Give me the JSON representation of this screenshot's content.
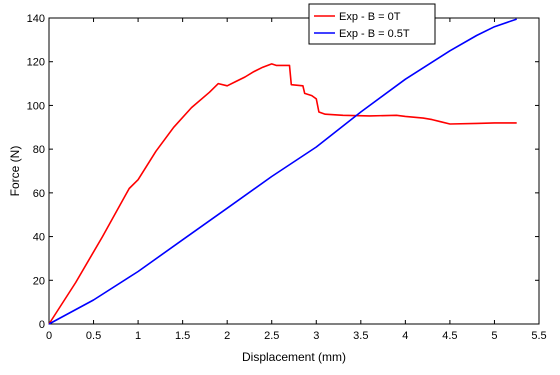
{
  "chart_data": {
    "type": "line",
    "xlabel": "Displacement (mm)",
    "ylabel": "Force (N)",
    "xlim": [
      0,
      5.5
    ],
    "ylim": [
      0,
      140
    ],
    "xticks": [
      0,
      0.5,
      1,
      1.5,
      2,
      2.5,
      3,
      3.5,
      4,
      4.5,
      5,
      5.5
    ],
    "yticks": [
      0,
      20,
      40,
      60,
      80,
      100,
      120,
      140
    ],
    "grid": false,
    "legend_position": "top-right",
    "series": [
      {
        "name": "Exp - B = 0T",
        "color": "#ff0000",
        "points": [
          [
            0,
            0
          ],
          [
            0.3,
            19
          ],
          [
            0.6,
            40
          ],
          [
            0.9,
            62
          ],
          [
            1.0,
            66
          ],
          [
            1.2,
            79
          ],
          [
            1.4,
            90
          ],
          [
            1.6,
            99
          ],
          [
            1.8,
            106
          ],
          [
            1.9,
            110
          ],
          [
            2.0,
            109
          ],
          [
            2.1,
            111
          ],
          [
            2.2,
            113
          ],
          [
            2.3,
            115.5
          ],
          [
            2.4,
            117.5
          ],
          [
            2.5,
            119
          ],
          [
            2.55,
            118.3
          ],
          [
            2.7,
            118.3
          ],
          [
            2.72,
            109.5
          ],
          [
            2.85,
            109
          ],
          [
            2.87,
            105.5
          ],
          [
            2.95,
            104.5
          ],
          [
            3.0,
            103
          ],
          [
            3.03,
            97
          ],
          [
            3.1,
            96
          ],
          [
            3.3,
            95.5
          ],
          [
            3.6,
            95.2
          ],
          [
            3.9,
            95.5
          ],
          [
            4.0,
            95
          ],
          [
            4.2,
            94.2
          ],
          [
            4.3,
            93.5
          ],
          [
            4.4,
            92.5
          ],
          [
            4.5,
            91.5
          ],
          [
            4.8,
            91.8
          ],
          [
            5.0,
            92
          ],
          [
            5.25,
            92
          ]
        ]
      },
      {
        "name": "Exp - B = 0.5T",
        "color": "#0000ff",
        "points": [
          [
            0,
            0
          ],
          [
            0.5,
            11
          ],
          [
            1.0,
            24
          ],
          [
            1.5,
            38.5
          ],
          [
            2.0,
            53
          ],
          [
            2.5,
            67.5
          ],
          [
            3.0,
            81
          ],
          [
            3.5,
            97
          ],
          [
            4.0,
            112
          ],
          [
            4.5,
            125
          ],
          [
            4.8,
            132
          ],
          [
            5.0,
            136
          ],
          [
            5.25,
            139.5
          ]
        ]
      }
    ]
  }
}
